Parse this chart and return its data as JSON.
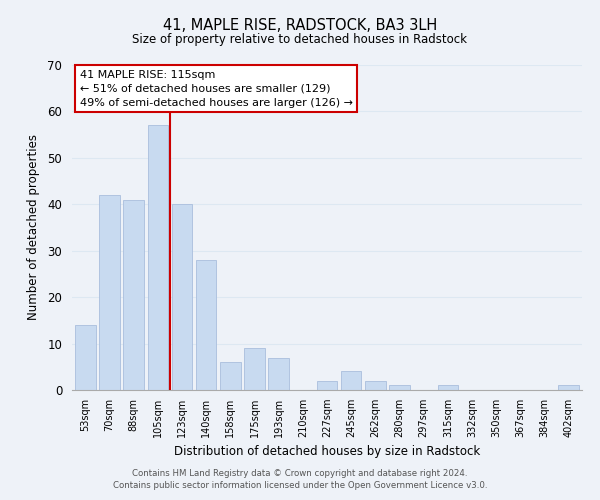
{
  "title": "41, MAPLE RISE, RADSTOCK, BA3 3LH",
  "subtitle": "Size of property relative to detached houses in Radstock",
  "xlabel": "Distribution of detached houses by size in Radstock",
  "ylabel": "Number of detached properties",
  "categories": [
    "53sqm",
    "70sqm",
    "88sqm",
    "105sqm",
    "123sqm",
    "140sqm",
    "158sqm",
    "175sqm",
    "193sqm",
    "210sqm",
    "227sqm",
    "245sqm",
    "262sqm",
    "280sqm",
    "297sqm",
    "315sqm",
    "332sqm",
    "350sqm",
    "367sqm",
    "384sqm",
    "402sqm"
  ],
  "values": [
    14,
    42,
    41,
    57,
    40,
    28,
    6,
    9,
    7,
    0,
    2,
    4,
    2,
    1,
    0,
    1,
    0,
    0,
    0,
    0,
    1
  ],
  "bar_color": "#c8daf0",
  "bar_edgecolor": "#aabedd",
  "vline_x_index": 3.5,
  "vline_color": "#cc0000",
  "ylim": [
    0,
    70
  ],
  "yticks": [
    0,
    10,
    20,
    30,
    40,
    50,
    60,
    70
  ],
  "annotation_text": "41 MAPLE RISE: 115sqm\n← 51% of detached houses are smaller (129)\n49% of semi-detached houses are larger (126) →",
  "annotation_box_edgecolor": "#cc0000",
  "annotation_box_facecolor": "#ffffff",
  "footnote1": "Contains HM Land Registry data © Crown copyright and database right 2024.",
  "footnote2": "Contains public sector information licensed under the Open Government Licence v3.0.",
  "grid_color": "#dde8f2",
  "background_color": "#eef2f8"
}
